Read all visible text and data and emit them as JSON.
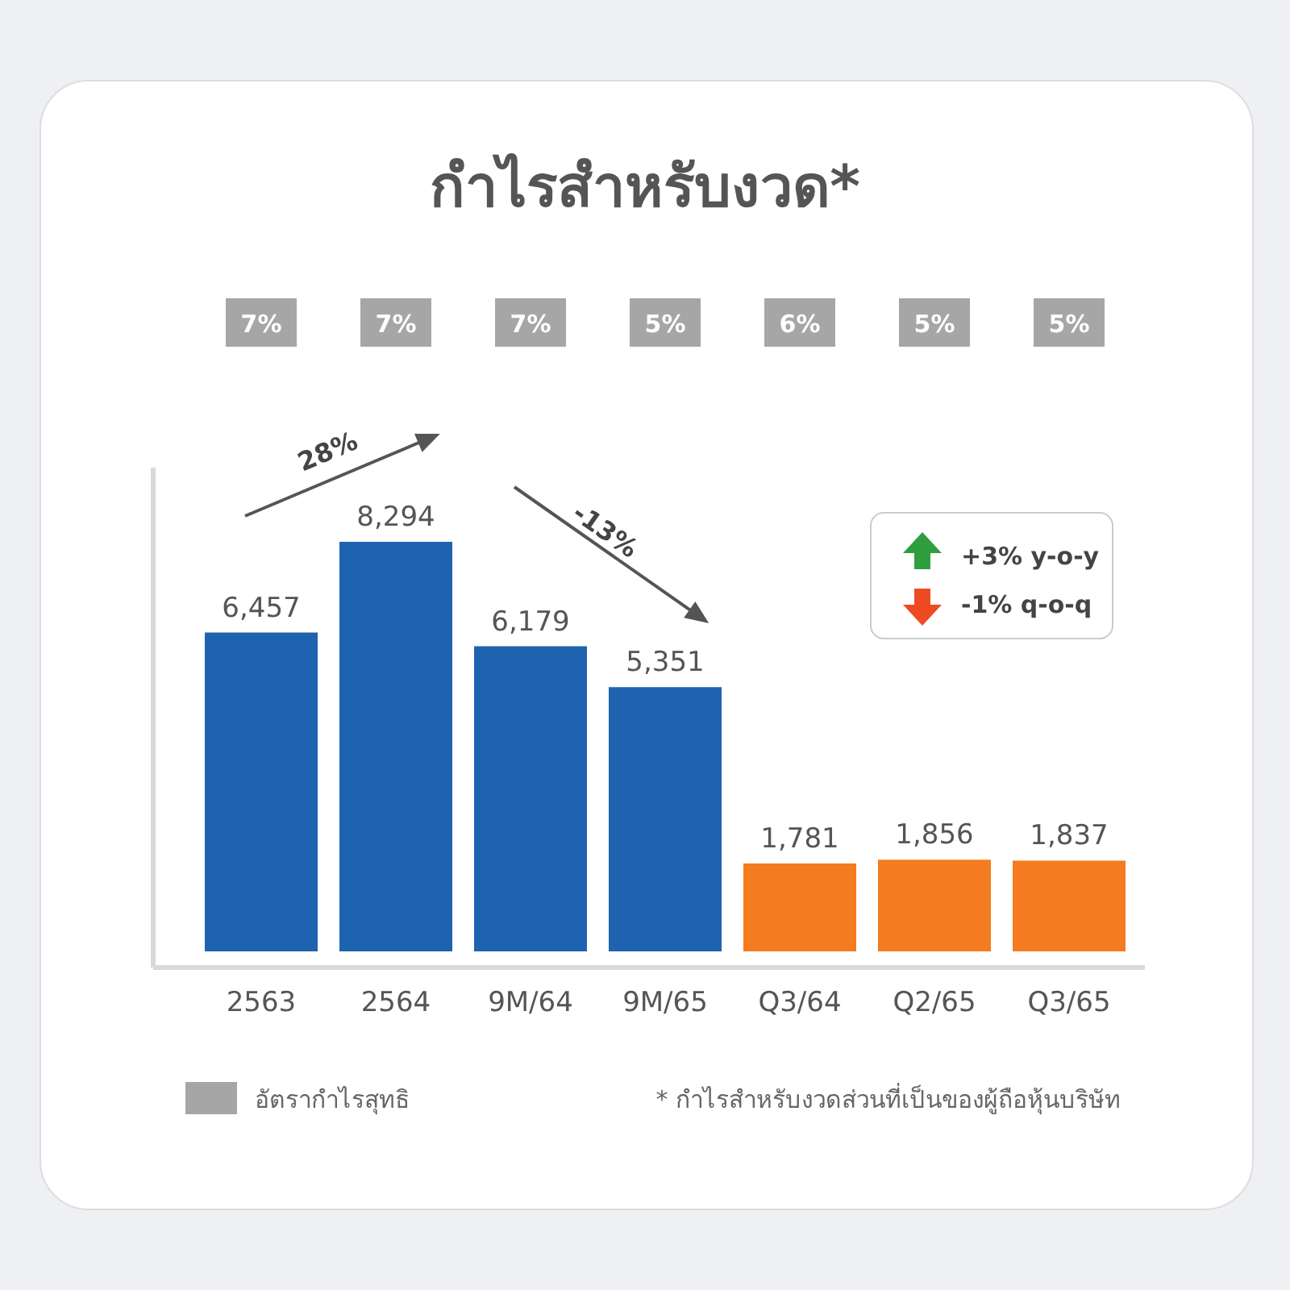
{
  "chart_data": {
    "type": "bar",
    "title": "กำไรสำหรับงวด*",
    "categories": [
      "2563",
      "2564",
      "9M/64",
      "9M/65",
      "Q3/64",
      "Q2/65",
      "Q3/65"
    ],
    "series": [
      {
        "colors": [
          "#1e63b0",
          "#1e63b0",
          "#1e63b0",
          "#1e63b0",
          "#f47b20",
          "#f47b20",
          "#f47b20"
        ],
        "values": [
          6457,
          8294,
          6179,
          5351,
          1781,
          1856,
          1837
        ],
        "value_labels": [
          "6,457",
          "8,294",
          "6,179",
          "5,351",
          "1,781",
          "1,856",
          "1,837"
        ]
      }
    ],
    "annotations": [
      "28%",
      "-13%",
      "+3% y-o-y",
      "-1% q-o-q",
      "* กำไรสำหรับงวดส่วนที่เป็นของผู้ถือหุ้นบริษัท",
      "อัตรากำไรสุทธิ",
      "7%",
      "7%",
      "7%",
      "5%",
      "6%",
      "5%",
      "5%"
    ]
  }
}
